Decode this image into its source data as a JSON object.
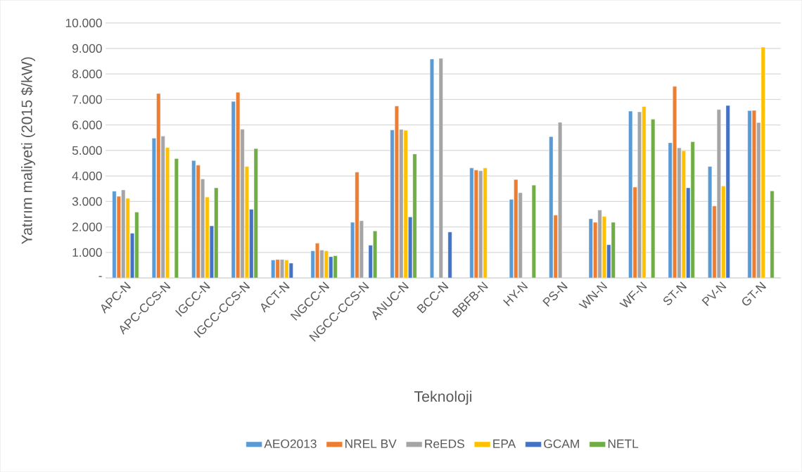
{
  "chart_data": {
    "type": "bar",
    "xlabel": "Teknoloji",
    "ylabel": "Yatırım maliyeti (2015 $/kW)",
    "categories": [
      "APC-N",
      "APC-CCS-N",
      "IGCC-N",
      "IGCC-CCS-N",
      "ACT-N",
      "NGCC-N",
      "NGCC-CCS-N",
      "ANUC-N",
      "BCC-N",
      "BBFB-N",
      "HY-N",
      "PS-N",
      "WN-N",
      "WF-N",
      "ST-N",
      "PV-N",
      "GT-N"
    ],
    "series": [
      {
        "name": "AEO2013",
        "color": "#5b9bd5",
        "values": [
          3400,
          5480,
          4600,
          6920,
          700,
          1060,
          2180,
          5800,
          8580,
          4310,
          3080,
          5540,
          2320,
          6540,
          5300,
          4370,
          6560
        ]
      },
      {
        "name": "NREL BV",
        "color": "#ed7d31",
        "values": [
          3200,
          7230,
          4420,
          7280,
          720,
          1360,
          4150,
          6740,
          null,
          4230,
          3860,
          2460,
          2180,
          3560,
          7510,
          2820,
          6570
        ]
      },
      {
        "name": "ReEDS",
        "color": "#a5a5a5",
        "values": [
          3450,
          5560,
          3880,
          5830,
          720,
          1090,
          2240,
          5820,
          8610,
          4200,
          3340,
          6100,
          2660,
          6510,
          5100,
          6600,
          6090
        ]
      },
      {
        "name": "EPA",
        "color": "#ffc000",
        "values": [
          3120,
          5110,
          3170,
          4370,
          700,
          1060,
          null,
          5790,
          null,
          4310,
          null,
          null,
          2410,
          6720,
          4990,
          3600,
          9050
        ]
      },
      {
        "name": "GCAM",
        "color": "#4472c4",
        "values": [
          1750,
          null,
          2040,
          2690,
          580,
          830,
          1280,
          2390,
          1800,
          null,
          null,
          null,
          1300,
          null,
          3530,
          6760,
          null
        ]
      },
      {
        "name": "NETL",
        "color": "#70ad47",
        "values": [
          2580,
          4680,
          3530,
          5070,
          null,
          870,
          1840,
          4860,
          null,
          null,
          3640,
          null,
          2180,
          6220,
          5340,
          null,
          3410
        ]
      }
    ],
    "ylim": [
      0,
      10000
    ],
    "yticks": [
      {
        "value": 0,
        "label": "-"
      },
      {
        "value": 1000,
        "label": "1.000"
      },
      {
        "value": 2000,
        "label": "2.000"
      },
      {
        "value": 3000,
        "label": "3.000"
      },
      {
        "value": 4000,
        "label": "4.000"
      },
      {
        "value": 5000,
        "label": "5.000"
      },
      {
        "value": 6000,
        "label": "6.000"
      },
      {
        "value": 7000,
        "label": "7.000"
      },
      {
        "value": 8000,
        "label": "8.000"
      },
      {
        "value": 9000,
        "label": "9.000"
      },
      {
        "value": 10000,
        "label": "10.000"
      }
    ],
    "grid": "y",
    "legend": "bottom"
  }
}
